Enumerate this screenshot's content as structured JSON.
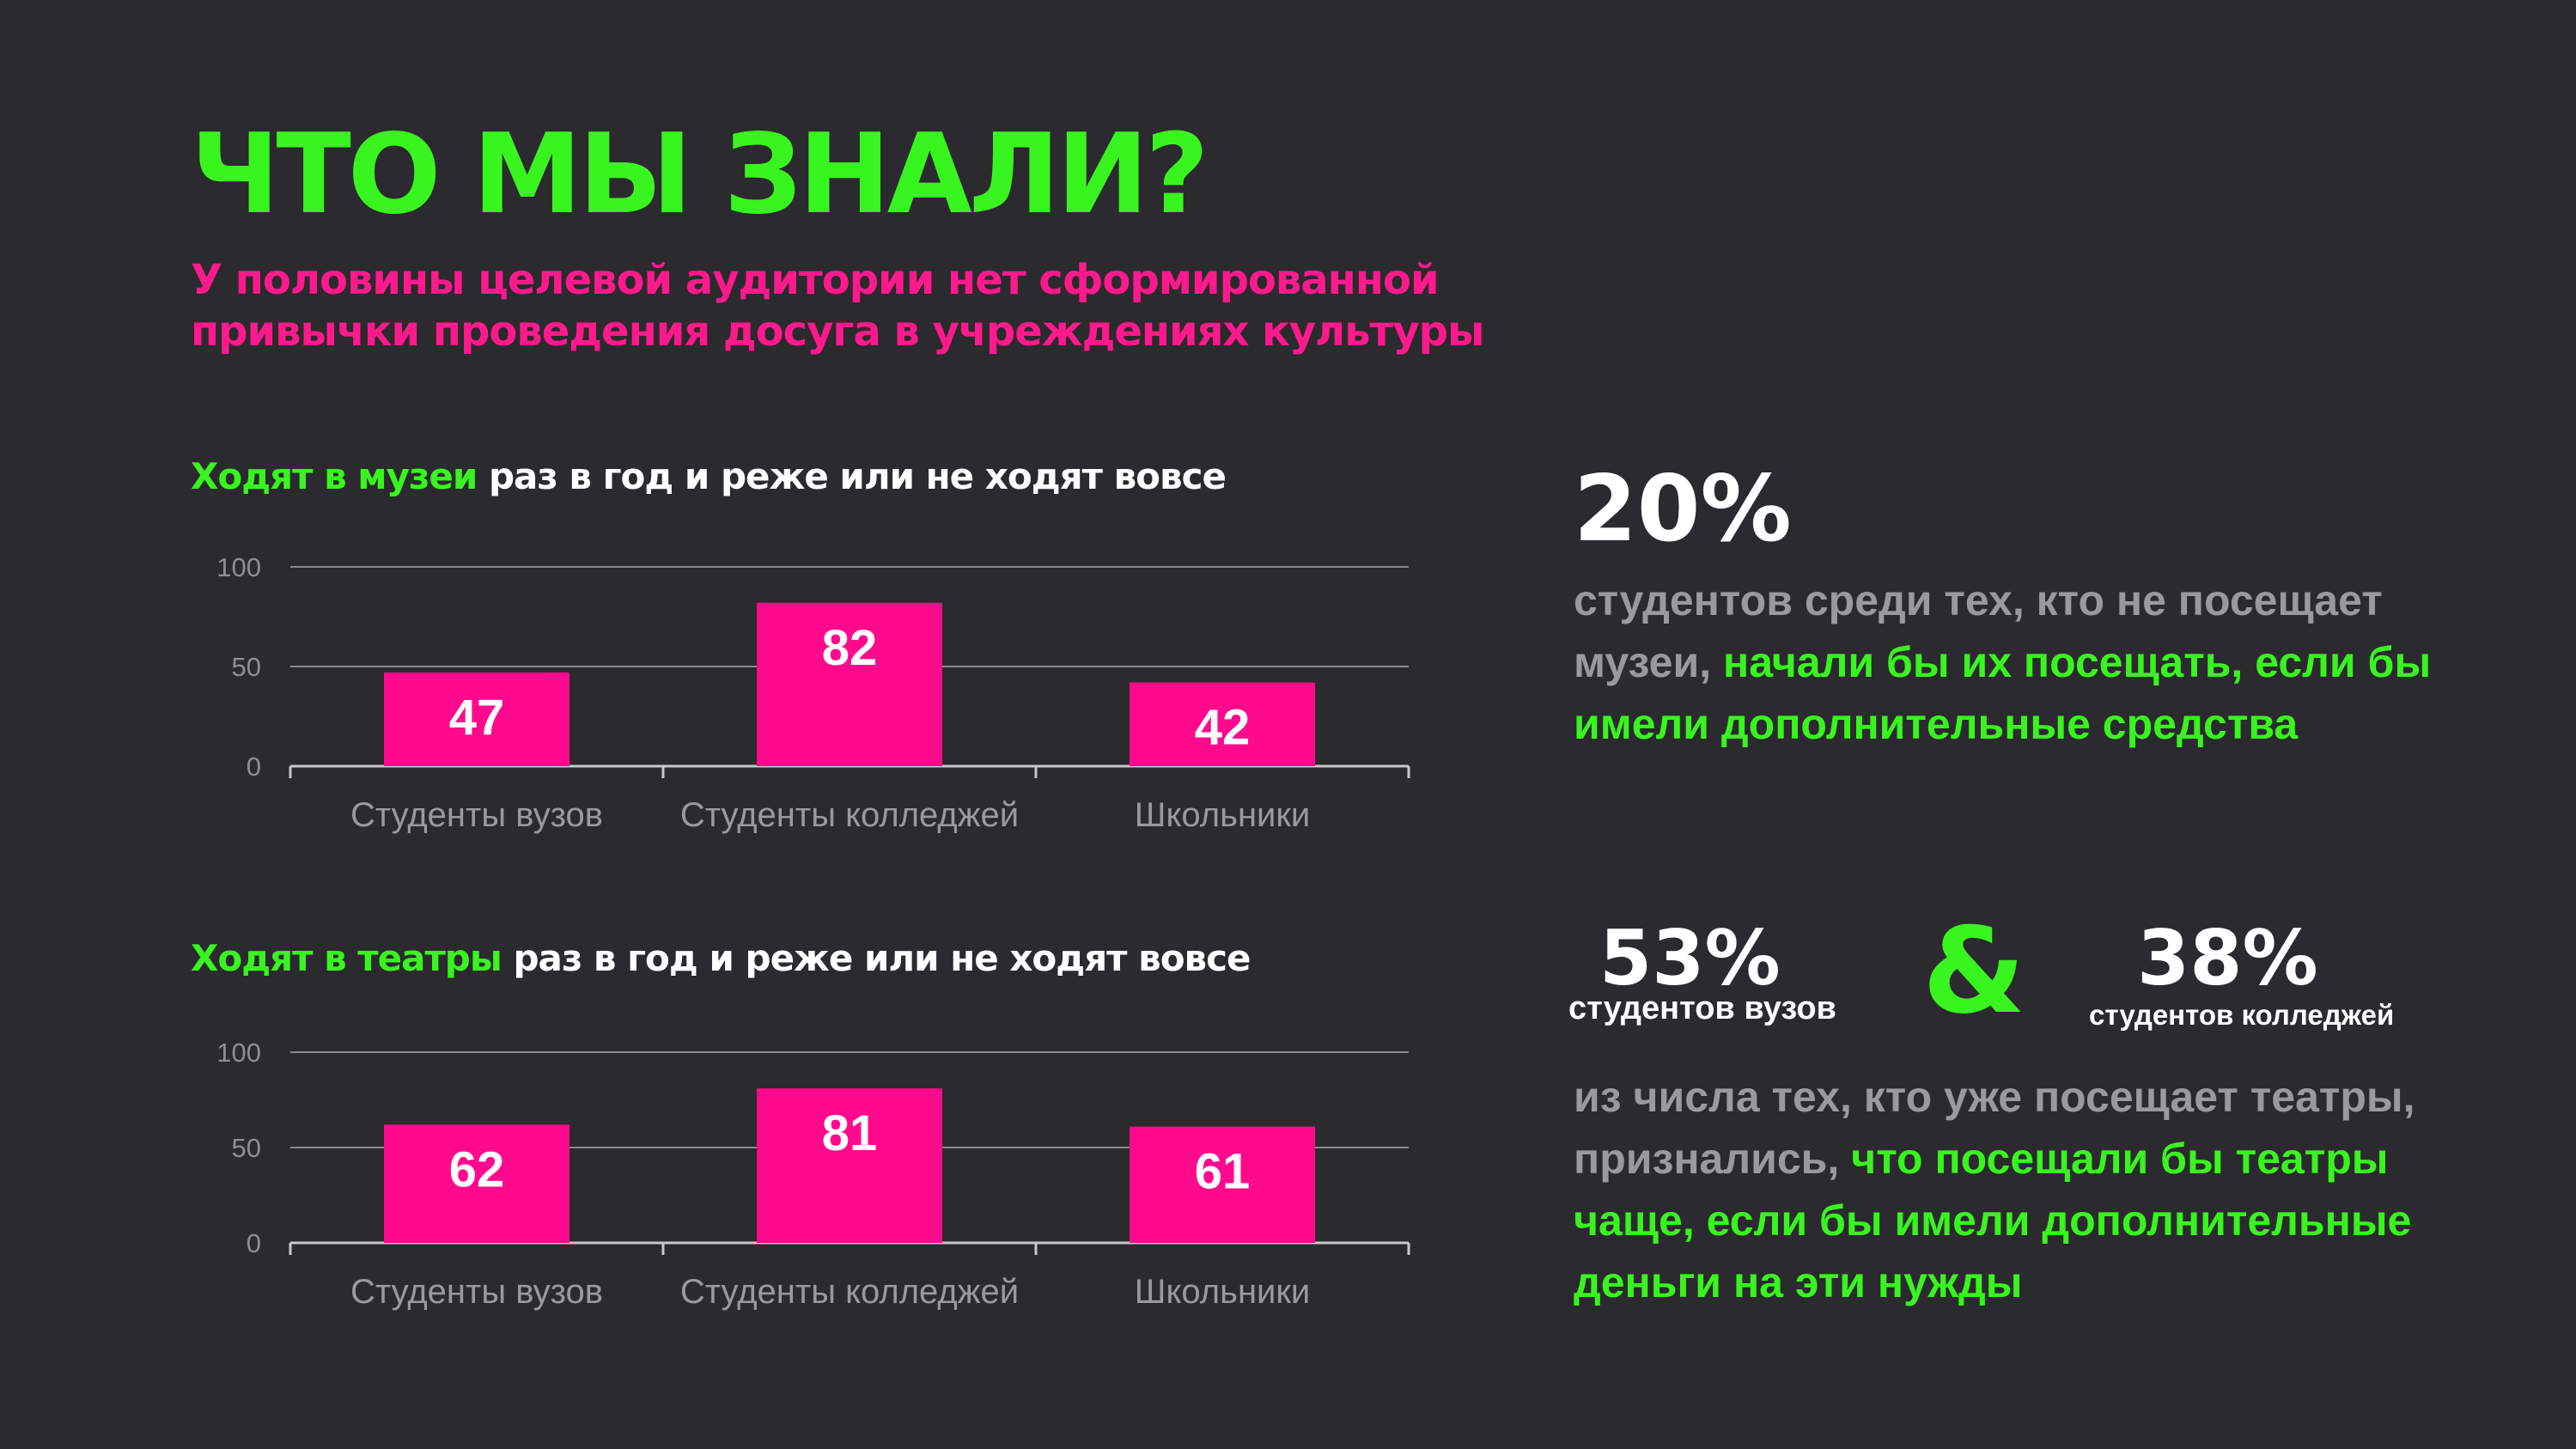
{
  "slide": {
    "title": "ЧТО МЫ ЗНАЛИ?",
    "subtitle": "У половины целевой аудитории нет сформированной привычки проведения досуга в учреждениях культуры"
  },
  "chart1_heading": {
    "highlight": "Ходят в музеи",
    "rest": " раз в год и реже или не ходят вовсе"
  },
  "chart2_heading": {
    "highlight": "Ходят в театры",
    "rest": " раз в год и реже или не ходят вовсе"
  },
  "chart_data": [
    {
      "type": "bar",
      "categories": [
        "Студенты вузов",
        "Студенты колледжей",
        "Школьники"
      ],
      "values": [
        47,
        82,
        42
      ],
      "ylim": [
        0,
        100
      ],
      "yticks": [
        0,
        50,
        100
      ],
      "grid": true,
      "bar_color": "#ff0a8c"
    },
    {
      "type": "bar",
      "categories": [
        "Студенты вузов",
        "Студенты колледжей",
        "Школьники"
      ],
      "values": [
        62,
        81,
        61
      ],
      "ylim": [
        0,
        100
      ],
      "yticks": [
        0,
        50,
        100
      ],
      "grid": true,
      "bar_color": "#ff0a8c"
    }
  ],
  "stat1": {
    "value": "20%",
    "text_gray": "студентов среди тех, кто  не посещает музеи, ",
    "text_green": "начали бы их посещать, если бы имели дополнительные средства"
  },
  "stat2": {
    "value_a": "53%",
    "label_a": "студентов вузов",
    "amp": "&",
    "value_b": "38%",
    "label_b": "студентов колледжей",
    "text_gray": "из числа тех, кто уже посещает театры, признались, ",
    "text_green": "что посещали бы театры чаще, если бы имели дополнительные деньги на эти нужды"
  },
  "colors": {
    "background": "#2b2a2e",
    "accent_green": "#39f51f",
    "accent_pink": "#ff1a8c",
    "muted_text": "#9a999c"
  }
}
